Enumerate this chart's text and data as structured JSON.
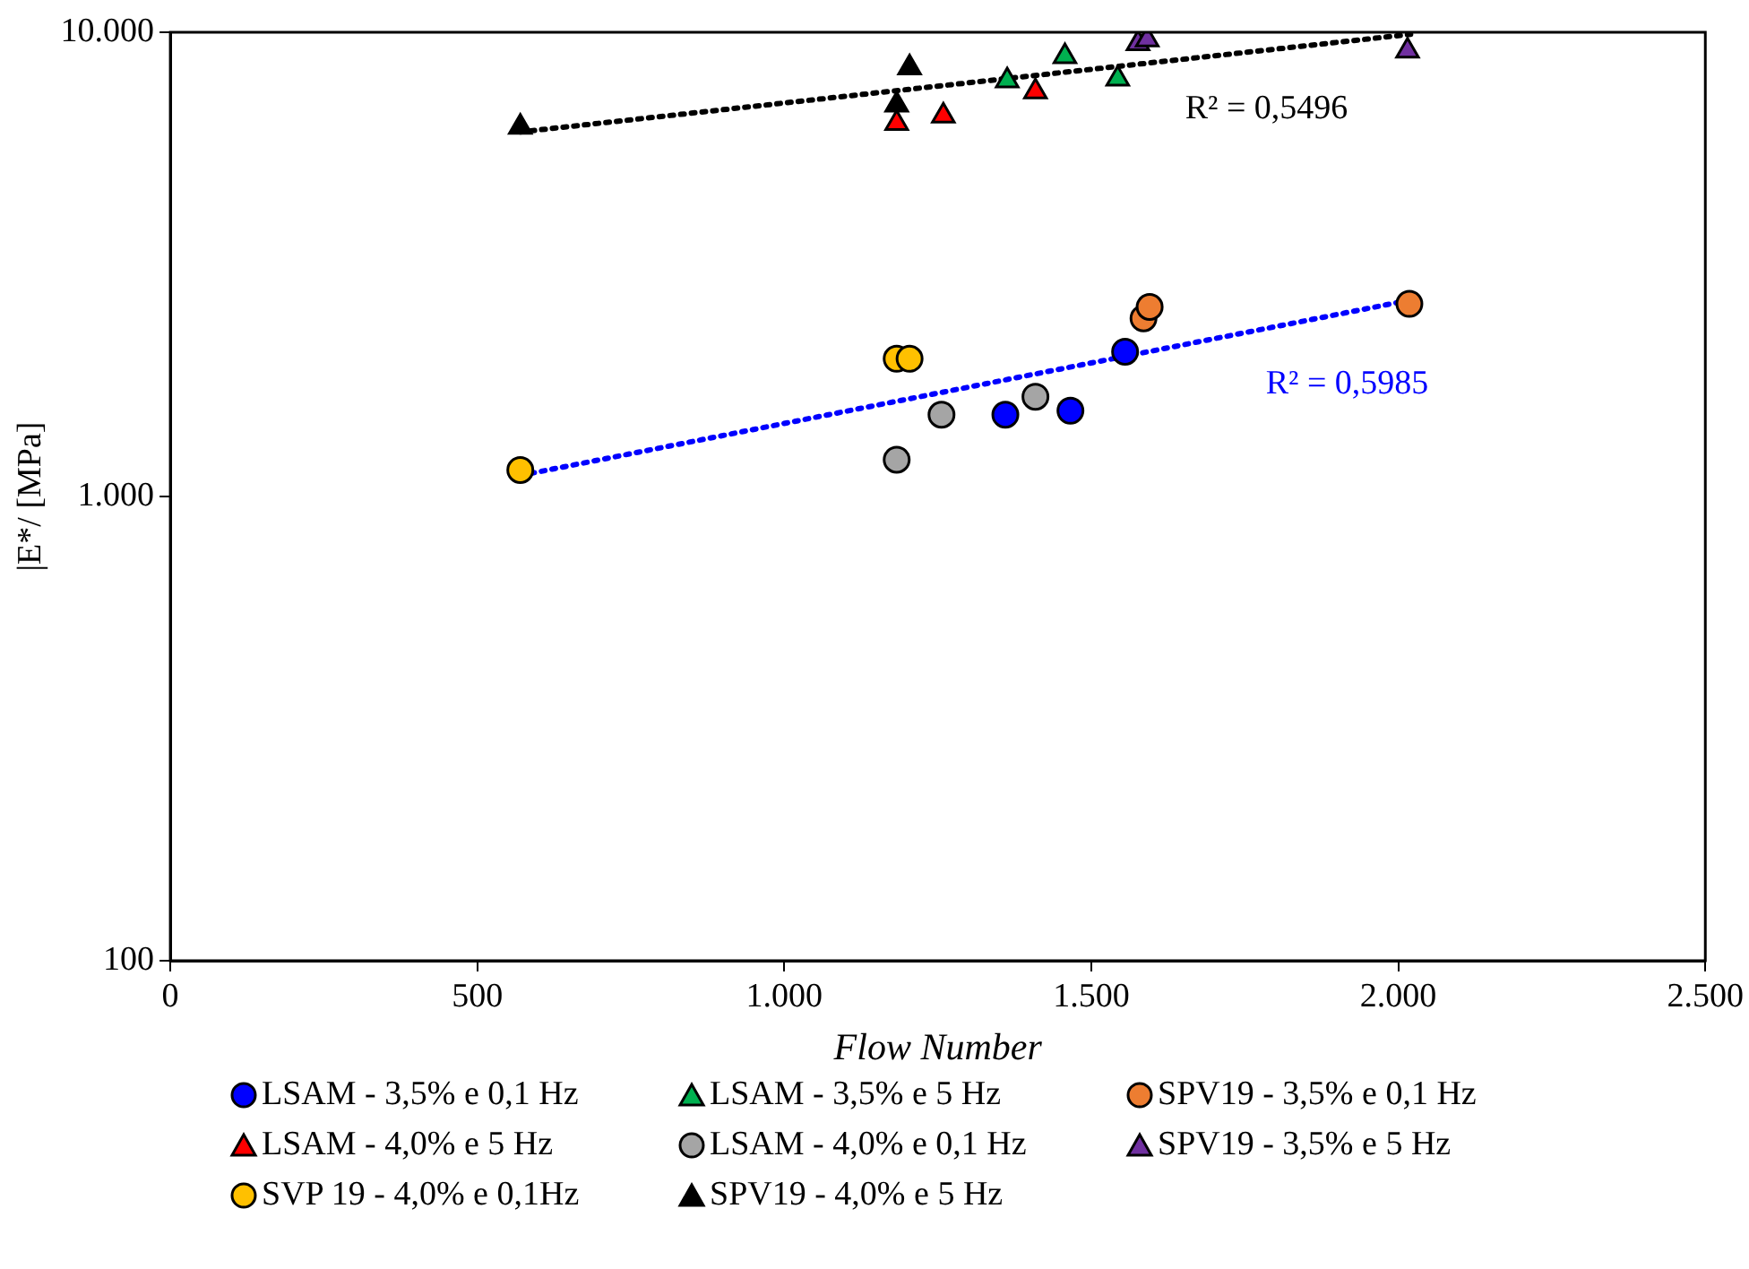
{
  "chart_data": {
    "type": "scatter",
    "xlabel": "Flow Number",
    "ylabel": "|E*/ [MPa]",
    "xlim": [
      0,
      2500
    ],
    "xticks": [
      0,
      500,
      {
        "value": 1000,
        "label": "1.000"
      },
      {
        "value": 1500,
        "label": "1.500"
      },
      {
        "value": 2000,
        "label": "2.000"
      },
      {
        "value": 2500,
        "label": "2.500"
      }
    ],
    "ylim": [
      100,
      10000
    ],
    "yticks": [
      100,
      {
        "value": 1000,
        "label": "1.000"
      },
      {
        "value": 10000,
        "label": "10.000"
      }
    ],
    "log": "y",
    "grid": false,
    "legend": "bottom",
    "series": [
      {
        "name": "LSAM - 3,5% e 0,1 Hz",
        "color": "#0000ff",
        "marker": "circle",
        "x": [
          1360,
          1466,
          1555
        ],
        "values": [
          1500,
          1530,
          2050
        ]
      },
      {
        "name": "LSAM - 3,5% e 5 Hz",
        "color": "#00b050",
        "marker": "triangle",
        "x": [
          1363,
          1457,
          1543
        ],
        "values": [
          7870,
          8870,
          7940
        ]
      },
      {
        "name": "SPV19 - 3,5% e 0,1 Hz",
        "color": "#ed7d31",
        "marker": "circle",
        "x": [
          1585,
          1595,
          2018
        ],
        "values": [
          2420,
          2560,
          2600
        ]
      },
      {
        "name": "LSAM - 4,0% e 5 Hz",
        "color": "#ff0000",
        "marker": "triangle",
        "x": [
          1183,
          1259,
          1409
        ],
        "values": [
          6370,
          6610,
          7450
        ]
      },
      {
        "name": "LSAM - 4,0% e 0,1 Hz",
        "color": "#a5a5a5",
        "marker": "circle",
        "x": [
          1183,
          1256,
          1409
        ],
        "values": [
          1200,
          1500,
          1640
        ]
      },
      {
        "name": "SPV19 - 3,5% e 5 Hz",
        "color": "#7030a0",
        "marker": "triangle",
        "x": [
          1576,
          1591,
          2015
        ],
        "values": [
          9460,
          9640,
          9120
        ]
      },
      {
        "name": "SVP 19 - 4,0% e 0,1Hz",
        "color": "#ffc000",
        "marker": "circle",
        "x": [
          570,
          1183,
          1204
        ],
        "values": [
          1140,
          1980,
          1980
        ]
      },
      {
        "name": "SPV19 - 4,0% e 5 Hz",
        "color": "#000000",
        "marker": "triangle",
        "x": [
          570,
          1204,
          1183
        ],
        "values": [
          6250,
          8390,
          6980
        ]
      },
      {
        "type": "line",
        "color": "#000000",
        "marker": "none",
        "line_style": "dotted",
        "x": [
          570,
          2020
        ],
        "values": [
          6100,
          9900
        ]
      },
      {
        "type": "line",
        "color": "#0000ff",
        "marker": "none",
        "line_style": "dotted",
        "x": [
          570,
          2020
        ],
        "values": [
          1110,
          2650
        ]
      }
    ],
    "annotations": [
      "R² = 0,5496",
      "R² = 0,5985"
    ]
  }
}
